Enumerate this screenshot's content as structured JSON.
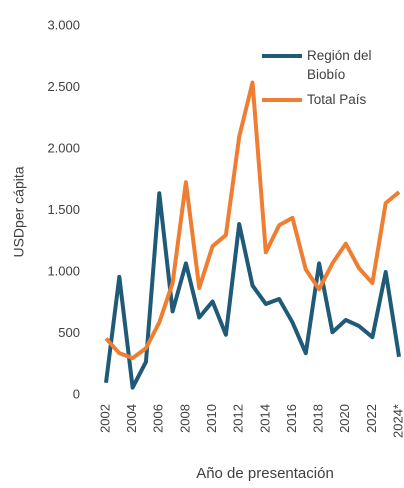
{
  "chart_data": {
    "type": "line",
    "x_label": "Año de presentación",
    "y_label": "USDper cápita",
    "categories": [
      "2002",
      null,
      "2004",
      null,
      "2006",
      null,
      "2008",
      null,
      "2010",
      null,
      "2012",
      null,
      "2014",
      null,
      "2016",
      null,
      "2018",
      null,
      "2020",
      null,
      "2022",
      null,
      "2024*"
    ],
    "series": [
      {
        "name": "Región del Biobío",
        "color": "#1f5a78",
        "values": [
          100,
          960,
          60,
          270,
          1640,
          680,
          1070,
          630,
          760,
          490,
          1390,
          890,
          740,
          780,
          590,
          340,
          1070,
          510,
          610,
          560,
          470,
          1000,
          310
        ]
      },
      {
        "name": "Total País",
        "color": "#ef7d32",
        "values": [
          460,
          340,
          300,
          380,
          590,
          910,
          1730,
          870,
          1210,
          1300,
          2100,
          2540,
          1160,
          1380,
          1440,
          1020,
          860,
          1070,
          1230,
          1030,
          910,
          1560,
          1650
        ]
      }
    ],
    "ylim": [
      0,
      3000
    ],
    "yticks": [
      0,
      500,
      {
        "value": 1000,
        "label": "1.000"
      },
      {
        "value": 1500,
        "label": "1.500"
      },
      {
        "value": 2000,
        "label": "2.000"
      },
      {
        "value": 2500,
        "label": "2.500"
      },
      {
        "value": 3000,
        "label": "3.000"
      }
    ],
    "grid": false,
    "legend": "top-right"
  }
}
